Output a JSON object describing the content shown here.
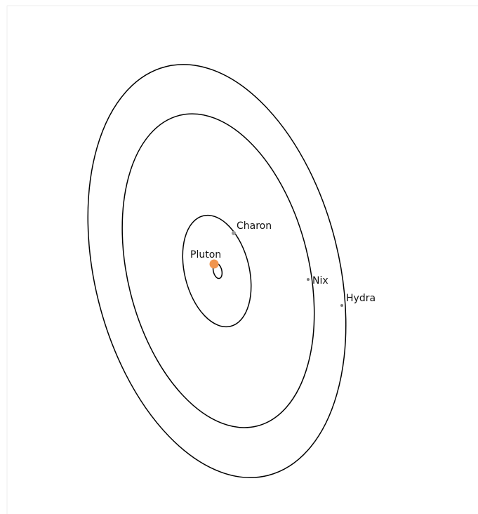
{
  "bodies": [
    {
      "name": "Pluton"
    },
    {
      "name": "Charon"
    },
    {
      "name": "Nix"
    },
    {
      "name": "Hydra"
    }
  ]
}
